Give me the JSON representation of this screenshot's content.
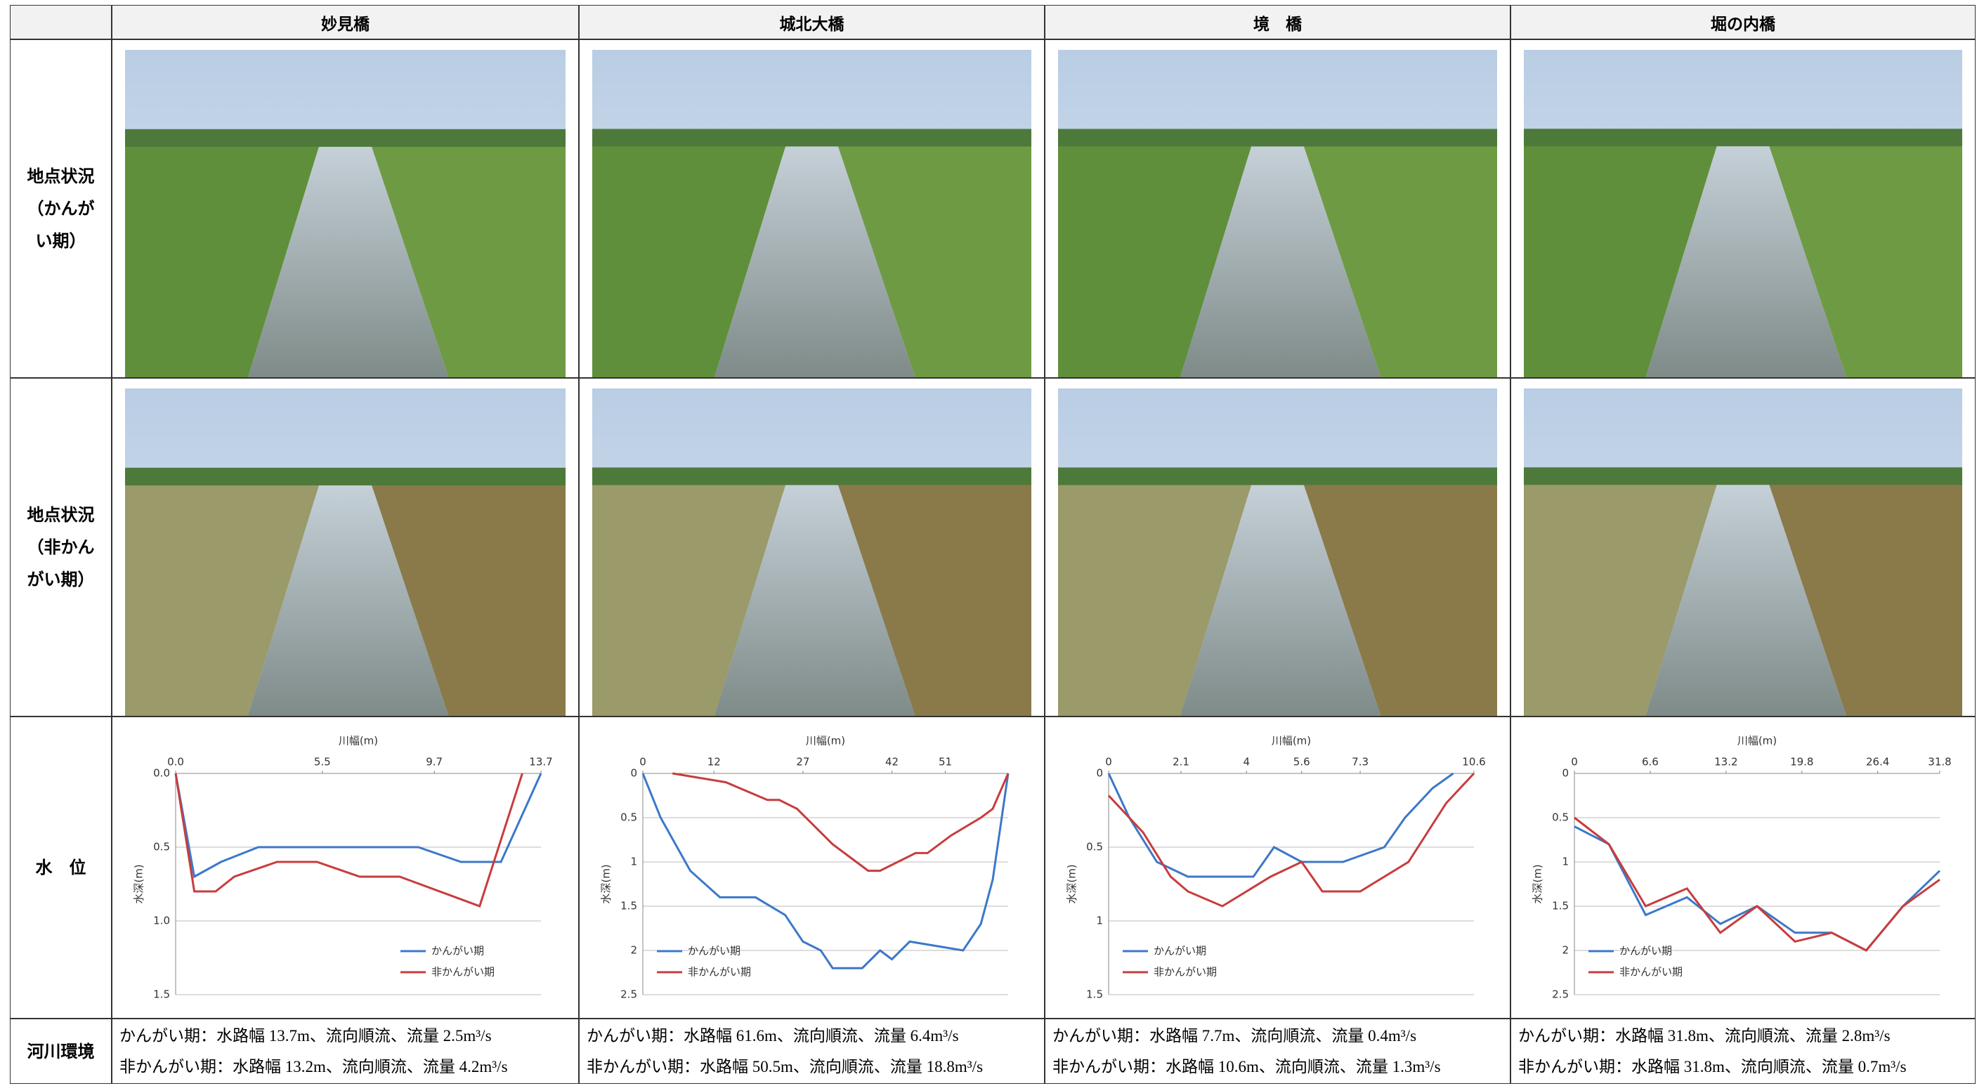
{
  "table": {
    "columns": [
      "妙見橋",
      "城北大橋",
      "境　橋",
      "堀の内橋"
    ],
    "row_labels": [
      "地点状況（かんがい期）",
      "地点状況（非かんがい期）",
      "水　位",
      "河川環境"
    ],
    "environment": [
      [
        "かんがい期：水路幅 13.7m、流向順流、流量 2.5m³/s",
        "非かんがい期：水路幅 13.2m、流向順流、流量 4.2m³/s"
      ],
      [
        "かんがい期：水路幅 61.6m、流向順流、流量 6.4m³/s",
        "非かんがい期：水路幅 50.5m、流向順流、流量 18.8m³/s"
      ],
      [
        "かんがい期：水路幅 7.7m、流向順流、流量 0.4m³/s",
        "非かんがい期：水路幅 10.6m、流向順流、流量 1.3m³/s"
      ],
      [
        "かんがい期：水路幅 31.8m、流向順流、流量 2.8m³/s",
        "非かんがい期：水路幅 31.8m、流向順流、流量 0.7m³/s"
      ]
    ]
  },
  "chart_data": [
    {
      "type": "line",
      "x_label": "川幅(m)",
      "y_label": "水深(m)",
      "legend": "lower right",
      "grid": true,
      "xlim": [
        0,
        13.7
      ],
      "xticks": [
        {
          "value": 0,
          "label": "0.0"
        },
        5.5,
        9.7,
        13.7
      ],
      "ylim": [
        0,
        1.5
      ],
      "yticks": [
        {
          "value": 0,
          "label": "0.0"
        },
        0.5,
        {
          "value": 1,
          "label": "1.0"
        },
        1.5
      ],
      "series": [
        {
          "name": "かんがい期",
          "color": "#3c78c8",
          "x": [
            0,
            0.7,
            1.7,
            3.1,
            9.1,
            10.7,
            12.2,
            13.7
          ],
          "values": [
            0,
            0.7,
            0.6,
            0.5,
            0.5,
            0.6,
            0.6,
            0
          ]
        },
        {
          "name": "非かんがい期",
          "color": "#c83c3c",
          "x": [
            0,
            0.7,
            1.5,
            2.2,
            3.8,
            5.3,
            6.9,
            8.4,
            11.4,
            13.0
          ],
          "values": [
            0,
            0.8,
            0.8,
            0.7,
            0.6,
            0.6,
            0.7,
            0.7,
            0.9,
            0
          ]
        }
      ]
    },
    {
      "type": "line",
      "x_label": "川幅(m)",
      "y_label": "水深(m)",
      "legend": "lower left",
      "grid": true,
      "xlim": [
        0,
        61.6
      ],
      "xticks": [
        0,
        12,
        27,
        42,
        51
      ],
      "ylim": [
        0,
        2.5
      ],
      "yticks": [
        0,
        0.5,
        1,
        1.5,
        2,
        2.5
      ],
      "series": [
        {
          "name": "かんがい期",
          "color": "#3c78c8",
          "x": [
            0,
            3,
            8,
            13,
            19,
            24,
            27,
            30,
            32,
            37,
            40,
            42,
            45,
            54,
            57,
            59,
            61.6
          ],
          "values": [
            0,
            0.5,
            1.1,
            1.4,
            1.4,
            1.6,
            1.9,
            2,
            2.2,
            2.2,
            2,
            2.1,
            1.9,
            2,
            1.7,
            1.2,
            0
          ]
        },
        {
          "name": "非かんがい期",
          "color": "#c83c3c",
          "x": [
            5,
            14,
            21,
            23,
            26,
            32,
            36,
            38,
            40,
            46,
            48,
            52,
            57,
            59,
            61.6
          ],
          "values": [
            0,
            0.1,
            0.3,
            0.3,
            0.4,
            0.8,
            1,
            1.1,
            1.1,
            0.9,
            0.9,
            0.7,
            0.5,
            0.4,
            0
          ]
        }
      ]
    },
    {
      "type": "line",
      "x_label": "川幅(m)",
      "y_label": "水深(m)",
      "legend": "lower left",
      "grid": true,
      "xlim": [
        0,
        10.6
      ],
      "xticks": [
        0,
        2.1,
        4,
        5.6,
        7.3,
        10.6
      ],
      "ylim": [
        0,
        1.5
      ],
      "yticks": [
        0,
        0.5,
        1,
        1.5
      ],
      "series": [
        {
          "name": "かんがい期",
          "color": "#3c78c8",
          "x": [
            0,
            0.6,
            1.4,
            2.3,
            3.5,
            4.2,
            4.8,
            5.6,
            6.8,
            8,
            8.6,
            9.4,
            10
          ],
          "values": [
            0,
            0.3,
            0.6,
            0.7,
            0.7,
            0.7,
            0.5,
            0.6,
            0.6,
            0.5,
            0.3,
            0.1,
            0
          ]
        },
        {
          "name": "非かんがい期",
          "color": "#c83c3c",
          "x": [
            0,
            1,
            1.8,
            2.3,
            3.3,
            4.7,
            5.6,
            6.2,
            7.3,
            8.7,
            9.8,
            10.6
          ],
          "values": [
            0.15,
            0.4,
            0.7,
            0.8,
            0.9,
            0.7,
            0.6,
            0.8,
            0.8,
            0.6,
            0.2,
            0
          ]
        }
      ]
    },
    {
      "type": "line",
      "x_label": "川幅(m)",
      "y_label": "水深(m)",
      "legend": "lower left",
      "grid": true,
      "xlim": [
        0,
        31.8
      ],
      "xticks": [
        0,
        6.6,
        13.2,
        19.8,
        26.4,
        31.8
      ],
      "ylim": [
        0,
        2.5
      ],
      "yticks": [
        0,
        0.5,
        1,
        1.5,
        2,
        2.5
      ],
      "series": [
        {
          "name": "かんがい期",
          "color": "#3c78c8",
          "x": [
            0,
            3,
            6.2,
            9.8,
            12.7,
            15.9,
            19.2,
            22.4,
            25.4,
            28.6,
            31.8
          ],
          "values": [
            0.6,
            0.8,
            1.6,
            1.4,
            1.7,
            1.5,
            1.8,
            1.8,
            2,
            1.5,
            1.1
          ]
        },
        {
          "name": "非かんがい期",
          "color": "#c83c3c",
          "x": [
            0,
            3,
            6.2,
            9.8,
            12.7,
            15.9,
            19.2,
            22.4,
            25.4,
            28.6,
            31.8
          ],
          "values": [
            0.5,
            0.8,
            1.5,
            1.3,
            1.8,
            1.5,
            1.9,
            1.8,
            2,
            1.5,
            1.2
          ]
        }
      ]
    }
  ]
}
